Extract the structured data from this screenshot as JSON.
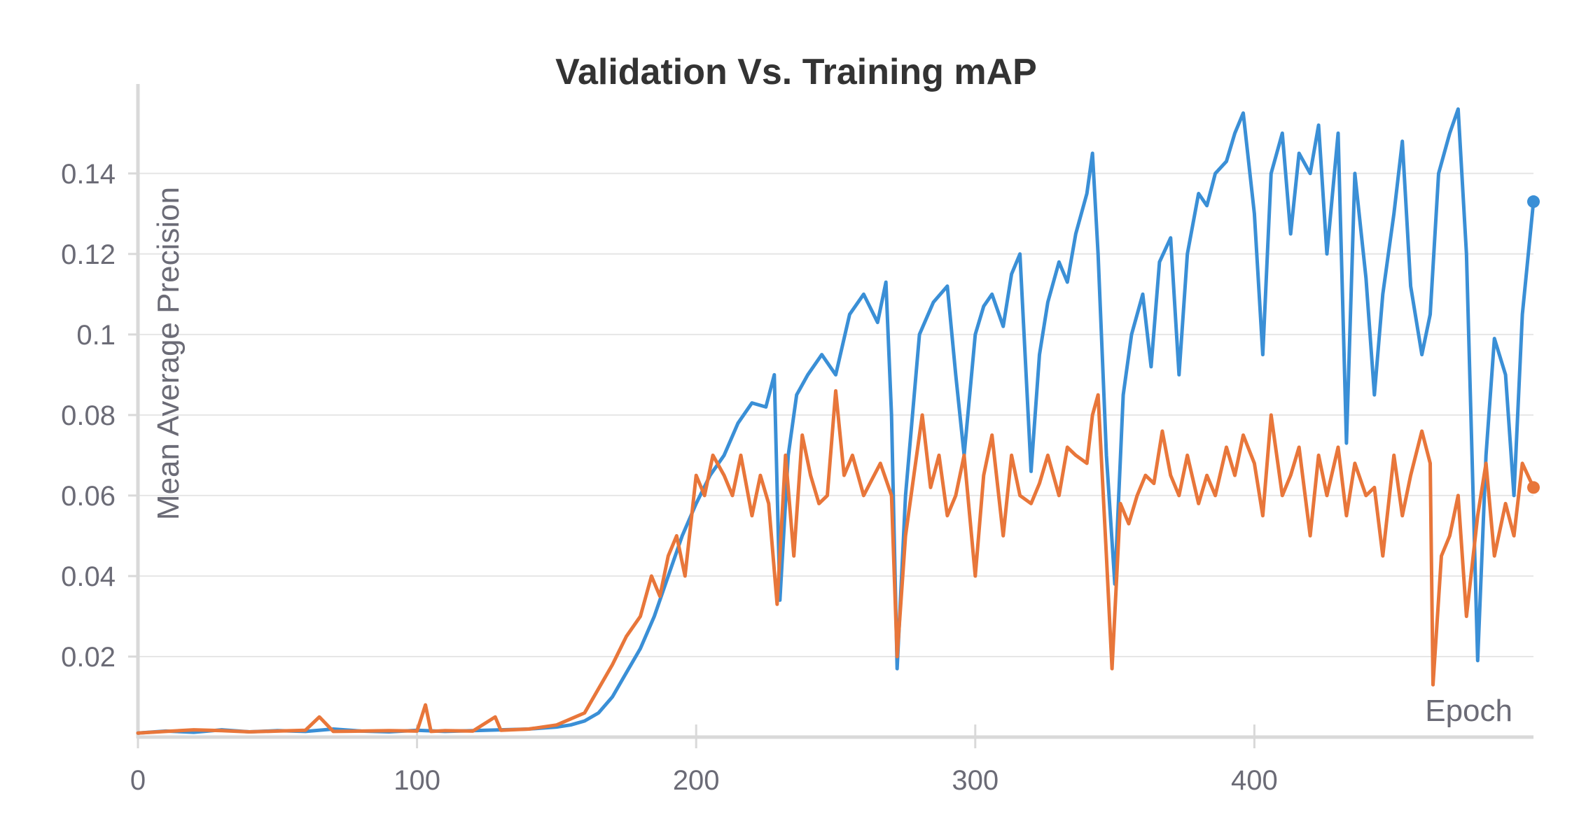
{
  "chart_data": {
    "type": "line",
    "title": "Validation Vs. Training mAP",
    "xlabel": "Epoch",
    "ylabel": "Mean Average Precision",
    "xlim": [
      0,
      500
    ],
    "ylim": [
      0,
      0.157
    ],
    "x_ticks": [
      "0",
      "100",
      "200",
      "300",
      "400"
    ],
    "x_tick_values": [
      0,
      100,
      200,
      300,
      400
    ],
    "y_ticks": [
      "0.02",
      "0.04",
      "0.06",
      "0.08",
      "0.1",
      "0.12",
      "0.14"
    ],
    "y_tick_values": [
      0.02,
      0.04,
      0.06,
      0.08,
      0.1,
      0.12,
      0.14
    ],
    "grid": "horizontal",
    "colors": {
      "blue_series": "#3a8fd6",
      "orange_series": "#e8763a",
      "grid": "#e6e6e6",
      "axis": "#d9d9d9"
    },
    "series": [
      {
        "color": "#3a8fd6",
        "x": [
          0,
          10,
          20,
          30,
          40,
          50,
          60,
          70,
          80,
          90,
          100,
          110,
          120,
          130,
          140,
          150,
          155,
          160,
          165,
          170,
          175,
          180,
          185,
          190,
          195,
          200,
          205,
          210,
          215,
          220,
          225,
          228,
          230,
          233,
          236,
          240,
          245,
          250,
          255,
          260,
          265,
          268,
          270,
          272,
          275,
          280,
          285,
          290,
          293,
          296,
          300,
          303,
          306,
          310,
          313,
          316,
          320,
          323,
          326,
          330,
          333,
          336,
          340,
          342,
          344,
          347,
          350,
          353,
          356,
          360,
          363,
          366,
          370,
          373,
          376,
          380,
          383,
          386,
          390,
          393,
          396,
          400,
          403,
          406,
          410,
          413,
          416,
          420,
          423,
          426,
          430,
          433,
          436,
          440,
          443,
          446,
          450,
          453,
          456,
          460,
          463,
          466,
          470,
          473,
          476,
          480,
          483,
          486,
          490,
          493,
          496,
          500
        ],
        "values": [
          0.001,
          0.0015,
          0.0012,
          0.0018,
          0.0013,
          0.0016,
          0.0014,
          0.002,
          0.0015,
          0.0013,
          0.0017,
          0.0014,
          0.0016,
          0.0018,
          0.002,
          0.0025,
          0.003,
          0.004,
          0.006,
          0.01,
          0.016,
          0.022,
          0.03,
          0.04,
          0.05,
          0.058,
          0.065,
          0.07,
          0.078,
          0.083,
          0.082,
          0.09,
          0.034,
          0.07,
          0.085,
          0.09,
          0.095,
          0.09,
          0.105,
          0.11,
          0.103,
          0.113,
          0.08,
          0.017,
          0.06,
          0.1,
          0.108,
          0.112,
          0.09,
          0.07,
          0.1,
          0.107,
          0.11,
          0.102,
          0.115,
          0.12,
          0.066,
          0.095,
          0.108,
          0.118,
          0.113,
          0.125,
          0.135,
          0.145,
          0.12,
          0.07,
          0.038,
          0.085,
          0.1,
          0.11,
          0.092,
          0.118,
          0.124,
          0.09,
          0.12,
          0.135,
          0.132,
          0.14,
          0.143,
          0.15,
          0.155,
          0.13,
          0.095,
          0.14,
          0.15,
          0.125,
          0.145,
          0.14,
          0.152,
          0.12,
          0.15,
          0.073,
          0.14,
          0.114,
          0.085,
          0.11,
          0.13,
          0.148,
          0.112,
          0.095,
          0.105,
          0.14,
          0.15,
          0.156,
          0.12,
          0.019,
          0.07,
          0.099,
          0.09,
          0.06,
          0.105,
          0.133
        ]
      },
      {
        "color": "#e8763a",
        "x": [
          0,
          10,
          20,
          30,
          40,
          50,
          60,
          65,
          70,
          80,
          90,
          100,
          103,
          105,
          110,
          120,
          128,
          130,
          140,
          150,
          160,
          165,
          170,
          175,
          180,
          184,
          187,
          190,
          193,
          196,
          200,
          203,
          206,
          210,
          213,
          216,
          220,
          223,
          226,
          229,
          232,
          235,
          238,
          241,
          244,
          247,
          250,
          253,
          256,
          260,
          263,
          266,
          270,
          272,
          275,
          278,
          281,
          284,
          287,
          290,
          293,
          296,
          300,
          303,
          306,
          310,
          313,
          316,
          320,
          323,
          326,
          330,
          333,
          336,
          340,
          342,
          344,
          347,
          349,
          352,
          355,
          358,
          361,
          364,
          367,
          370,
          373,
          376,
          380,
          383,
          386,
          390,
          393,
          396,
          400,
          403,
          406,
          410,
          413,
          416,
          420,
          423,
          426,
          430,
          433,
          436,
          440,
          443,
          446,
          450,
          453,
          456,
          460,
          463,
          464,
          467,
          470,
          473,
          476,
          480,
          483,
          486,
          490,
          493,
          496,
          500
        ],
        "values": [
          0.001,
          0.0014,
          0.0018,
          0.0016,
          0.0013,
          0.0015,
          0.0017,
          0.005,
          0.0014,
          0.0015,
          0.0016,
          0.0015,
          0.008,
          0.0014,
          0.0016,
          0.0015,
          0.005,
          0.0017,
          0.002,
          0.003,
          0.006,
          0.012,
          0.018,
          0.025,
          0.03,
          0.04,
          0.035,
          0.045,
          0.05,
          0.04,
          0.065,
          0.06,
          0.07,
          0.065,
          0.06,
          0.07,
          0.055,
          0.065,
          0.058,
          0.033,
          0.07,
          0.045,
          0.075,
          0.065,
          0.058,
          0.06,
          0.086,
          0.065,
          0.07,
          0.06,
          0.064,
          0.068,
          0.06,
          0.02,
          0.05,
          0.065,
          0.08,
          0.062,
          0.07,
          0.055,
          0.06,
          0.07,
          0.04,
          0.065,
          0.075,
          0.05,
          0.07,
          0.06,
          0.058,
          0.063,
          0.07,
          0.06,
          0.072,
          0.07,
          0.068,
          0.08,
          0.085,
          0.045,
          0.017,
          0.058,
          0.053,
          0.06,
          0.065,
          0.063,
          0.076,
          0.065,
          0.06,
          0.07,
          0.058,
          0.065,
          0.06,
          0.072,
          0.065,
          0.075,
          0.068,
          0.055,
          0.08,
          0.06,
          0.065,
          0.072,
          0.05,
          0.07,
          0.06,
          0.072,
          0.055,
          0.068,
          0.06,
          0.062,
          0.045,
          0.07,
          0.055,
          0.065,
          0.076,
          0.068,
          0.013,
          0.045,
          0.05,
          0.06,
          0.03,
          0.055,
          0.068,
          0.045,
          0.058,
          0.05,
          0.068,
          0.062
        ]
      }
    ]
  }
}
